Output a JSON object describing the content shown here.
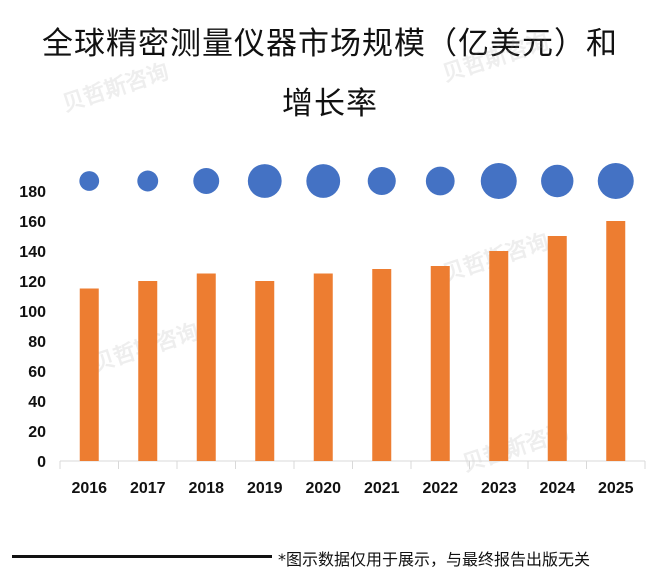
{
  "title_line1": "全球精密测量仪器市场规模（亿美元）和",
  "title_line2": "增长率",
  "footer_note": "*图示数据仅用于展示，与最终报告出版无关",
  "watermark_text": "贝哲斯咨询",
  "chart_data": {
    "type": "bar",
    "title": "全球精密测量仪器市场规模（亿美元）和增长率",
    "categories": [
      "2016",
      "2017",
      "2018",
      "2019",
      "2020",
      "2021",
      "2022",
      "2023",
      "2024",
      "2025"
    ],
    "series": [
      {
        "name": "市场规模（亿美元）",
        "type": "bar",
        "color": "#ED7D31",
        "values": [
          115,
          120,
          125,
          120,
          125,
          128,
          130,
          140,
          150,
          160
        ]
      },
      {
        "name": "增长率",
        "type": "bubble",
        "color": "#4472C4",
        "relative_sizes": [
          0.55,
          0.58,
          0.72,
          0.94,
          0.94,
          0.78,
          0.8,
          1.0,
          0.9,
          1.0
        ]
      }
    ],
    "ylim": [
      0,
      180
    ],
    "yticks": [
      0,
      20,
      40,
      60,
      80,
      100,
      120,
      140,
      160,
      180
    ],
    "xlabel": "",
    "ylabel": ""
  }
}
